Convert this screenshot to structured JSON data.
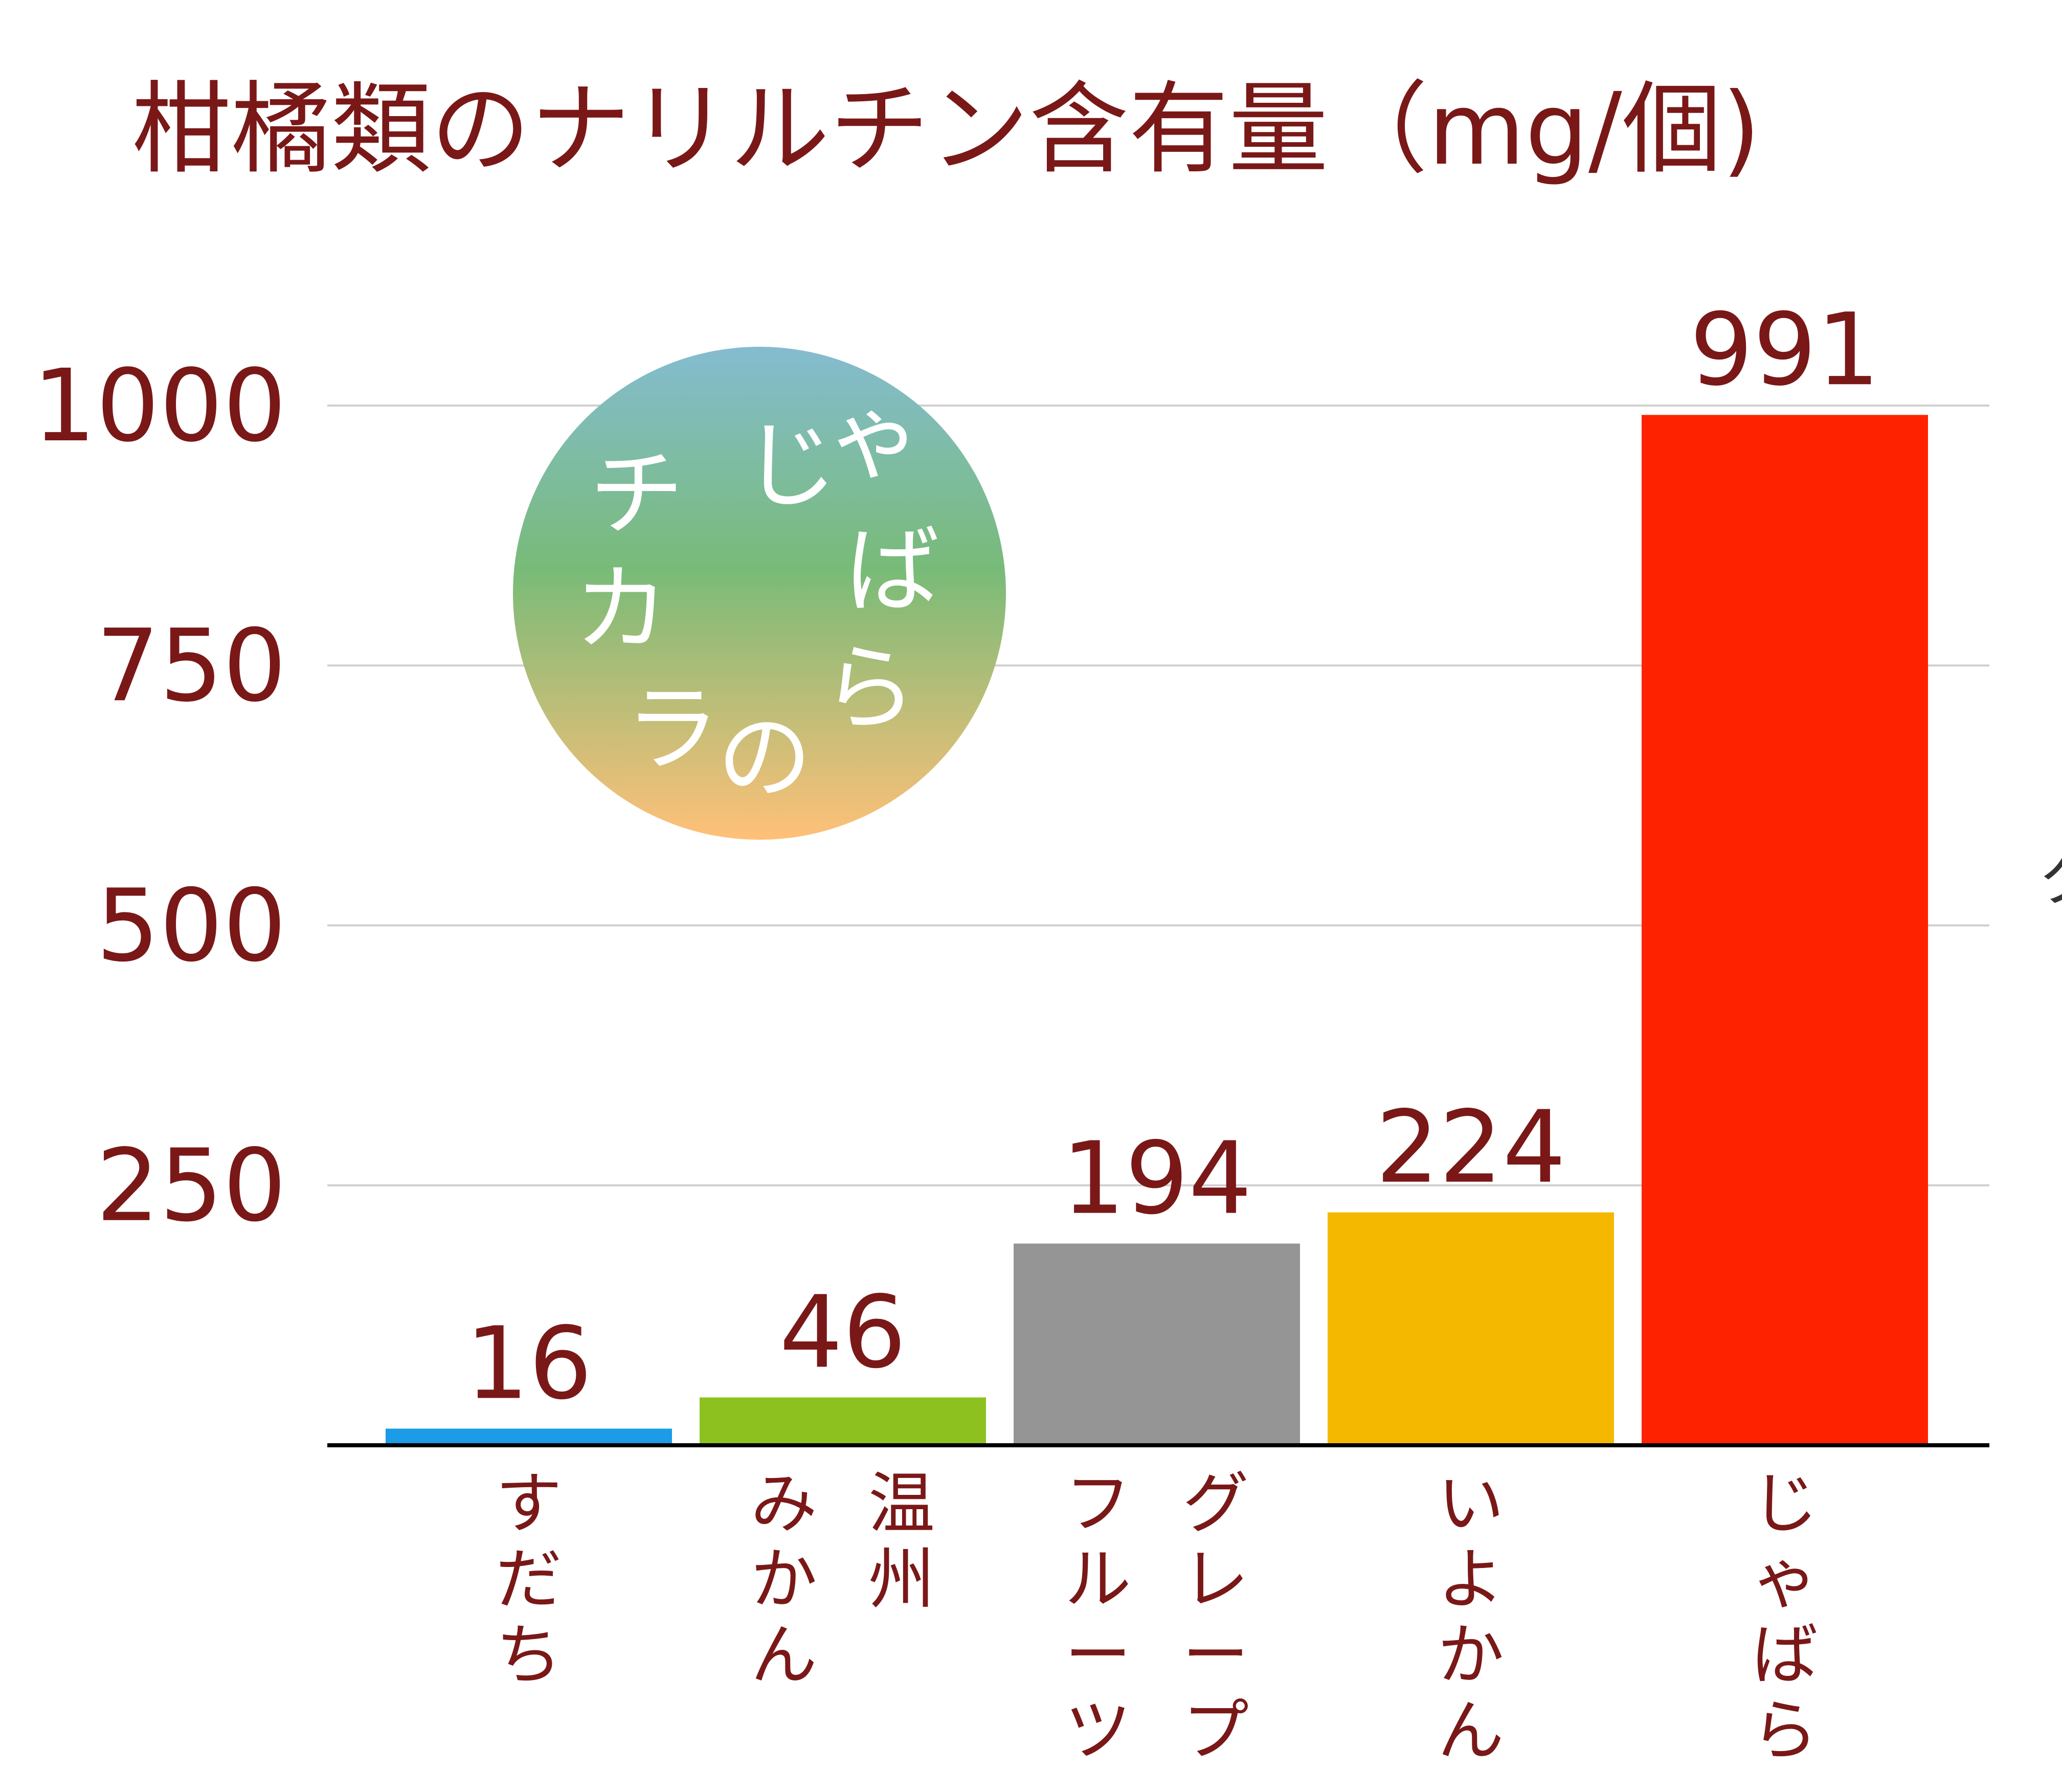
{
  "chart_data": {
    "type": "bar",
    "title": "柑橘類のナリルチン含有量（mg/個)",
    "xlabel": "",
    "ylabel": "",
    "ylim": [
      0,
      1000
    ],
    "yticks": [
      250,
      500,
      750,
      1000
    ],
    "grid": true,
    "categories": [
      {
        "label": "すだち",
        "columns": [
          "すだち"
        ]
      },
      {
        "label": "温州みかん",
        "columns": [
          "温州",
          "みかん"
        ]
      },
      {
        "label": "グレープフルーツ",
        "columns": [
          "グレープ",
          "フルーツ"
        ]
      },
      {
        "label": "いよかん",
        "columns": [
          "いよかん"
        ]
      },
      {
        "label": "じゃばら",
        "columns": [
          "じゃばら"
        ]
      }
    ],
    "values": [
      16,
      46,
      194,
      224,
      991
    ],
    "colors": [
      "#1c9be6",
      "#8cc120",
      "#959595",
      "#f5b800",
      "#ff2200"
    ]
  },
  "logo": {
    "chars": [
      "チ",
      "じ",
      "ゃ",
      "カ",
      "ば",
      "ら",
      "ラ",
      "の"
    ],
    "gradient": [
      "#84bcd0",
      "#78bb78",
      "#ffc078"
    ]
  },
  "edge_fragment": "ク"
}
